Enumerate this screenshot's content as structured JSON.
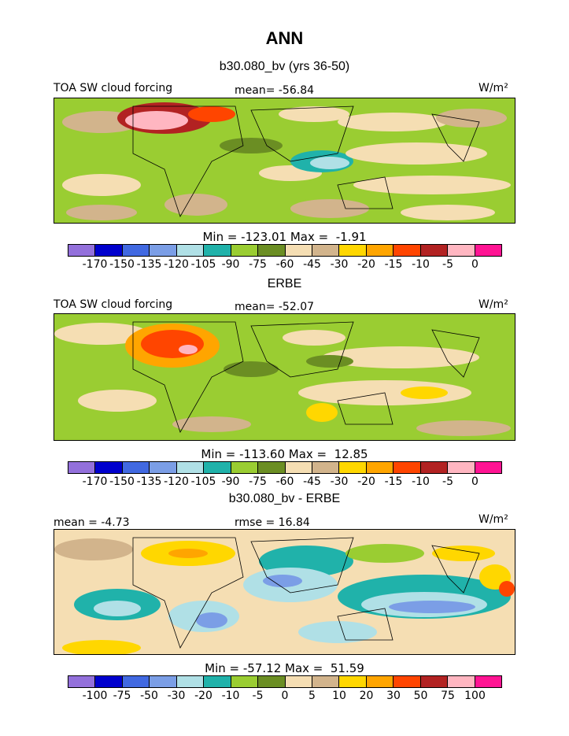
{
  "title": "ANN",
  "chart_data": [
    {
      "type": "heatmap",
      "title": "b30.080_bv (yrs 36-50)",
      "variable": "TOA SW cloud forcing",
      "units_label": "W/m²",
      "mean_label": "mean= -56.84",
      "minmax_label": "Min = -123.01 Max =  -1.91",
      "min": -123.01,
      "max": -1.91,
      "mean": -56.84,
      "levels": [
        "-170",
        "-150",
        "-135",
        "-120",
        "-105",
        "-90",
        "-75",
        "-60",
        "-45",
        "-30",
        "-20",
        "-15",
        "-10",
        "-5",
        "0"
      ],
      "colors": [
        "#9370db",
        "#0000cd",
        "#4169e1",
        "#7b9ee6",
        "#b0e0e6",
        "#20b2aa",
        "#9acd32",
        "#6b8e23",
        "#f5deb3",
        "#d2b48c",
        "#ffd700",
        "#ffa500",
        "#ff4500",
        "#b22222",
        "#ffb6c1",
        "#ff1493"
      ]
    },
    {
      "type": "heatmap",
      "title": "ERBE",
      "variable": "TOA SW cloud forcing",
      "units_label": "W/m²",
      "mean_label": "mean= -52.07",
      "minmax_label": "Min = -113.60 Max =  12.85",
      "min": -113.6,
      "max": 12.85,
      "mean": -52.07,
      "levels": [
        "-170",
        "-150",
        "-135",
        "-120",
        "-105",
        "-90",
        "-75",
        "-60",
        "-45",
        "-30",
        "-20",
        "-15",
        "-10",
        "-5",
        "0"
      ],
      "colors": [
        "#9370db",
        "#0000cd",
        "#4169e1",
        "#7b9ee6",
        "#b0e0e6",
        "#20b2aa",
        "#9acd32",
        "#6b8e23",
        "#f5deb3",
        "#d2b48c",
        "#ffd700",
        "#ffa500",
        "#ff4500",
        "#b22222",
        "#ffb6c1",
        "#ff1493"
      ]
    },
    {
      "type": "heatmap",
      "title": "b30.080_bv - ERBE",
      "units_label": "W/m²",
      "mean_label": "mean =  -4.73",
      "rmse_label": "rmse =  16.84",
      "minmax_label": "Min = -57.12 Max =  51.59",
      "min": -57.12,
      "max": 51.59,
      "mean": -4.73,
      "rmse": 16.84,
      "levels": [
        "-100",
        "-75",
        "-50",
        "-30",
        "-20",
        "-10",
        "-5",
        "0",
        "5",
        "10",
        "20",
        "30",
        "50",
        "75",
        "100"
      ],
      "colors": [
        "#9370db",
        "#0000cd",
        "#4169e1",
        "#7b9ee6",
        "#b0e0e6",
        "#20b2aa",
        "#9acd32",
        "#6b8e23",
        "#f5deb3",
        "#d2b48c",
        "#ffd700",
        "#ffa500",
        "#ff4500",
        "#b22222",
        "#ffb6c1",
        "#ff1493"
      ]
    }
  ]
}
